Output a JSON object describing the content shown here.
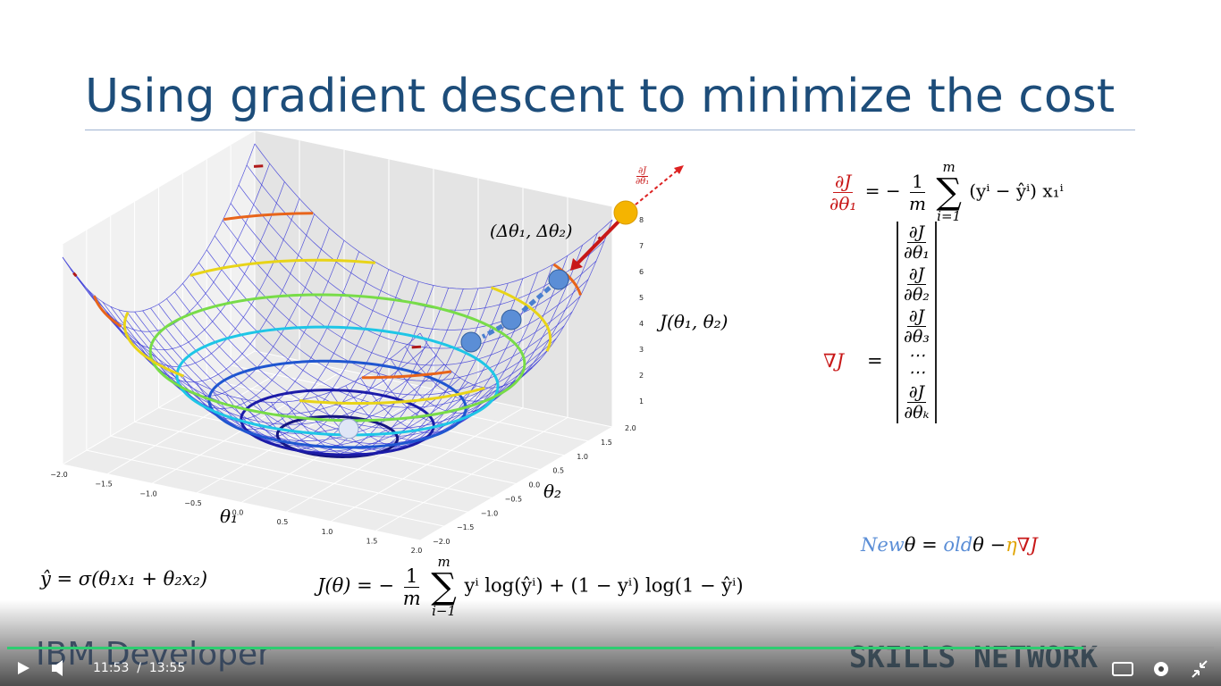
{
  "slide": {
    "title": "Using gradient descent to minimize the cost",
    "plot": {
      "x_label": "θ₁",
      "y_label": "θ₂",
      "z_label": "J(θ₁, θ₂)",
      "x_ticks": [
        "−2.0",
        "−1.5",
        "−1.0",
        "−0.5",
        "0.0",
        "0.5",
        "1.0",
        "1.5",
        "2.0"
      ],
      "y_ticks": [
        "−2.0",
        "−1.5",
        "−1.0",
        "−0.5",
        "0.0",
        "0.5",
        "1.0",
        "1.5",
        "2.0"
      ],
      "z_ticks": [
        "1",
        "2",
        "3",
        "4",
        "5",
        "6",
        "7",
        "8"
      ],
      "step_label": "(Δθ₁, Δθ₂)",
      "gradient_label": {
        "num": "∂J",
        "den": "∂θ₁"
      }
    },
    "hypothesis": "ŷ = σ(θ₁x₁ + θ₂x₂)",
    "cost": {
      "lhs": "J(θ)  = −",
      "frac": {
        "num": "1",
        "den": "m"
      },
      "sum": {
        "top": "m",
        "sigma": "∑",
        "bottom": "i−1"
      },
      "rhs": "yⁱ log(ŷⁱ) + (1 − yⁱ) log(1 − ŷⁱ)"
    },
    "partial": {
      "lhs": {
        "num": "∂J",
        "den": "∂θ₁"
      },
      "eq": "= −",
      "frac": {
        "num": "1",
        "den": "m"
      },
      "sum": {
        "top": "m",
        "sigma": "∑",
        "bottom": "i=1"
      },
      "rhs": "(yⁱ − ŷⁱ) x₁ⁱ"
    },
    "gradient": {
      "lhs": "∇J",
      "eq": "=",
      "entries": [
        {
          "num": "∂J",
          "den": "∂θ₁"
        },
        {
          "num": "∂J",
          "den": "∂θ₂"
        },
        {
          "num": "∂J",
          "den": "∂θ₃"
        },
        "⋯",
        "⋯",
        {
          "num": "∂J",
          "den": "∂θₖ"
        }
      ]
    },
    "update": {
      "new": "New",
      "theta1": "θ = ",
      "old": "old",
      "theta2": "θ −",
      "eta": "η",
      "grad": "∇J"
    }
  },
  "footer": {
    "left_logo": "IBM Developer",
    "right_logo": "SKILLS NETWORK"
  },
  "player": {
    "current_time": "11:53",
    "separator": "/",
    "duration": "13:55"
  }
}
